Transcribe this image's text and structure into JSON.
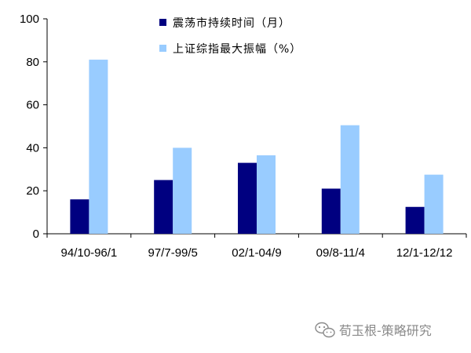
{
  "chart_data": {
    "type": "bar",
    "categories": [
      "94/10-96/1",
      "97/7-99/5",
      "02/1-04/9",
      "09/8-11/4",
      "12/1-12/12"
    ],
    "series": [
      {
        "name": "震荡市持续时间（月）",
        "values": [
          16,
          25,
          33,
          21,
          12.5
        ]
      },
      {
        "name": "上证综指最大振幅（%）",
        "values": [
          81,
          40,
          36.5,
          50.5,
          27.5
        ]
      }
    ],
    "ylim": [
      0,
      100
    ],
    "yticks": [
      "0",
      "20",
      "40",
      "60",
      "80",
      "100"
    ],
    "grid": false,
    "legend": "top-center"
  },
  "colors": {
    "series_1": "#000080",
    "series_2": "#99ccff",
    "axis": "#000000",
    "watermark": "#8a8a8a"
  },
  "watermark": {
    "icon": "wechat-icon",
    "text": "荀玉根-策略研究"
  }
}
